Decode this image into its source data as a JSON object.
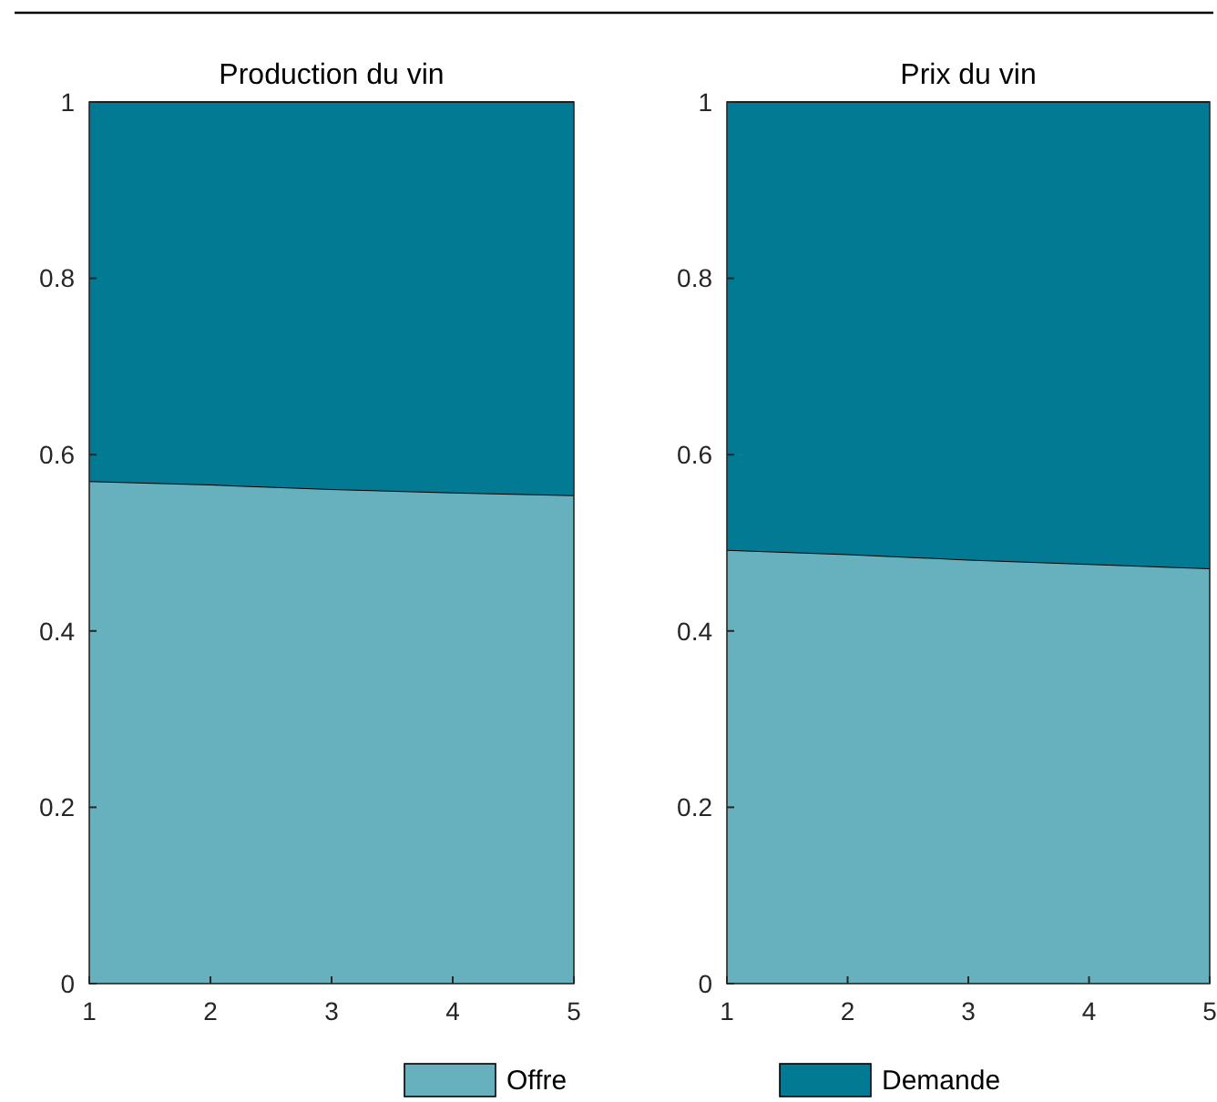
{
  "chart_data": [
    {
      "type": "area",
      "title": "Production du vin",
      "stacked": true,
      "x": [
        1,
        2,
        3,
        4,
        5
      ],
      "xlim": [
        1,
        5
      ],
      "xticks": [
        1,
        2,
        3,
        4,
        5
      ],
      "ylim": [
        0,
        1
      ],
      "yticks": [
        0,
        0.2,
        0.4,
        0.6,
        0.8,
        1
      ],
      "grid": false,
      "legend": "bottom",
      "series": [
        {
          "name": "Offre",
          "color": "#67b0be",
          "values": [
            0.57,
            0.566,
            0.561,
            0.557,
            0.554
          ]
        },
        {
          "name": "Demande",
          "color": "#037a94",
          "values": [
            0.43,
            0.434,
            0.439,
            0.443,
            0.446
          ]
        }
      ]
    },
    {
      "type": "area",
      "title": "Prix du vin",
      "stacked": true,
      "x": [
        1,
        2,
        3,
        4,
        5
      ],
      "xlim": [
        1,
        5
      ],
      "xticks": [
        1,
        2,
        3,
        4,
        5
      ],
      "ylim": [
        0,
        1
      ],
      "yticks": [
        0,
        0.2,
        0.4,
        0.6,
        0.8,
        1
      ],
      "grid": false,
      "series": [
        {
          "color": "#67b0be",
          "values": [
            0.492,
            0.487,
            0.481,
            0.476,
            0.471
          ]
        },
        {
          "color": "#037a94",
          "values": [
            0.508,
            0.513,
            0.519,
            0.524,
            0.529
          ]
        }
      ]
    }
  ]
}
